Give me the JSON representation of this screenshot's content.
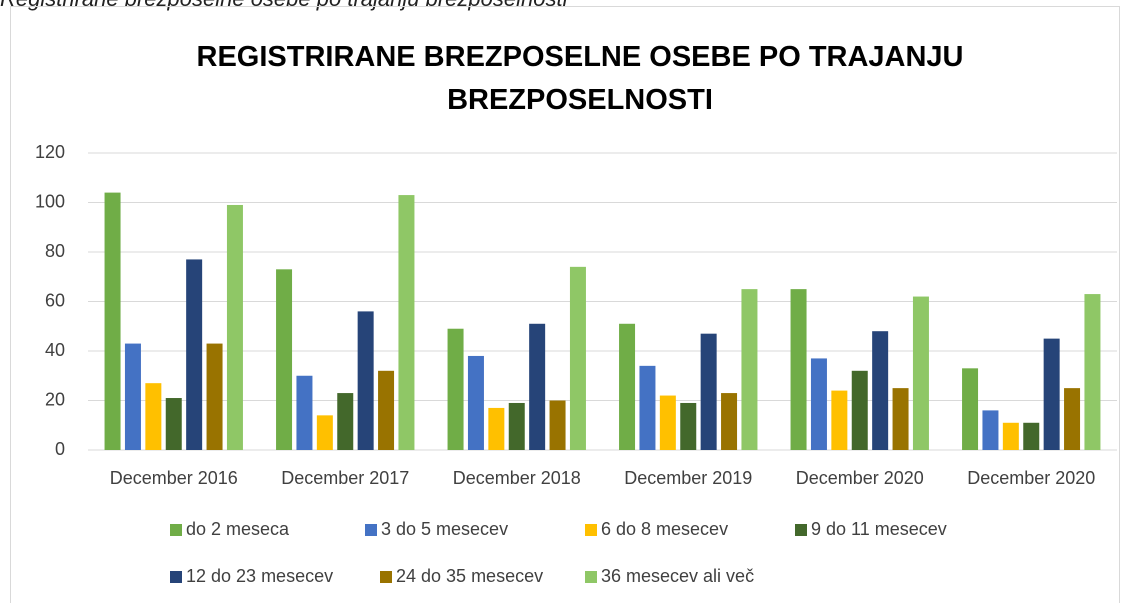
{
  "caption": "Registrirane brezposelne osebe po trajanju brezposelnosti",
  "chart_data": {
    "type": "bar",
    "title": "REGISTRIRANE BREZPOSELNE OSEBE PO TRAJANJU BREZPOSELNOSTI",
    "categories": [
      "December 2016",
      "December 2017",
      "December 2018",
      "December 2019",
      "December 2020",
      "December 2020"
    ],
    "series": [
      {
        "name": "do 2 meseca",
        "color": "#70ad47",
        "values": [
          104,
          73,
          49,
          51,
          65,
          33
        ]
      },
      {
        "name": "3 do 5 mesecev",
        "color": "#4472c4",
        "values": [
          43,
          30,
          38,
          34,
          37,
          16
        ]
      },
      {
        "name": "6 do 8 mesecev",
        "color": "#ffc000",
        "values": [
          27,
          14,
          17,
          22,
          24,
          11
        ]
      },
      {
        "name": "9 do 11 mesecev",
        "color": "#43682b",
        "values": [
          21,
          23,
          19,
          19,
          32,
          11
        ]
      },
      {
        "name": "12 do 23 mesecev",
        "color": "#264478",
        "values": [
          77,
          56,
          51,
          47,
          48,
          45
        ]
      },
      {
        "name": "24 do 35 mesecev",
        "color": "#997300",
        "values": [
          43,
          32,
          20,
          23,
          25,
          25
        ]
      },
      {
        "name": "36 mesecev ali več",
        "color": "#8fc766",
        "values": [
          99,
          103,
          74,
          65,
          62,
          63
        ]
      }
    ],
    "ylim": [
      0,
      120
    ],
    "yticks": [
      0,
      20,
      40,
      60,
      80,
      100,
      120
    ],
    "grid": true,
    "legend": "bottom"
  }
}
